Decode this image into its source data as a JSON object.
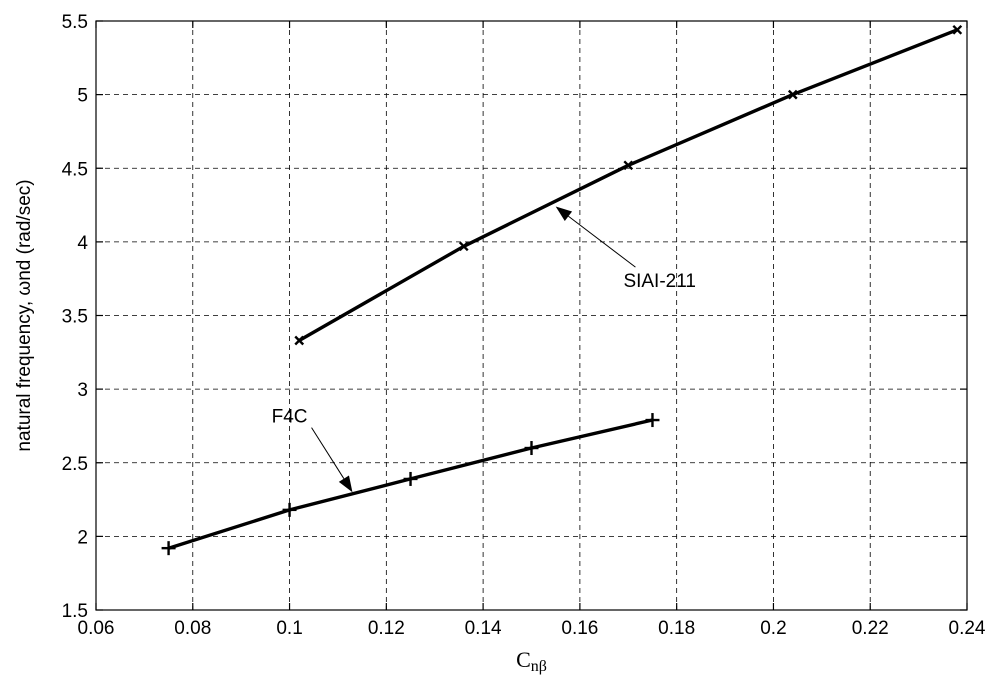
{
  "chart_data": {
    "type": "line",
    "title": "",
    "xlabel_main": "C",
    "xlabel_sub": "nβ",
    "ylabel": "natural frequency, ωnd (rad/sec)",
    "xlim": [
      0.06,
      0.24
    ],
    "ylim": [
      1.5,
      5.5
    ],
    "grid": true,
    "xticks": [
      0.06,
      0.08,
      0.1,
      0.12,
      0.14,
      0.16,
      0.18,
      0.2,
      0.22,
      0.24
    ],
    "xtick_labels": [
      "0.06",
      "0.08",
      "0.1",
      "0.12",
      "0.14",
      "0.16",
      "0.18",
      "0.2",
      "0.22",
      "0.24"
    ],
    "yticks": [
      1.5,
      2,
      2.5,
      3,
      3.5,
      4,
      4.5,
      5,
      5.5
    ],
    "ytick_labels": [
      "1.5",
      "2",
      "2.5",
      "3",
      "3.5",
      "4",
      "4.5",
      "5",
      "5.5"
    ],
    "series": [
      {
        "marker": "x",
        "x": [
          0.102,
          0.136,
          0.17,
          0.204,
          0.238
        ],
        "y": [
          3.33,
          3.97,
          4.52,
          5.0,
          5.44
        ]
      },
      {
        "marker": "+",
        "x": [
          0.075,
          0.1,
          0.125,
          0.15,
          0.175
        ],
        "y": [
          1.92,
          2.18,
          2.39,
          2.6,
          2.79
        ]
      }
    ],
    "annotations": [
      {
        "text": "SIAI-211",
        "text_at": [
          0.169,
          3.74
        ],
        "arrow_to": [
          0.155,
          4.24
        ]
      },
      {
        "text": "F4C",
        "text_at": [
          0.1,
          2.82
        ],
        "arrow_to": [
          0.113,
          2.3
        ]
      }
    ]
  }
}
